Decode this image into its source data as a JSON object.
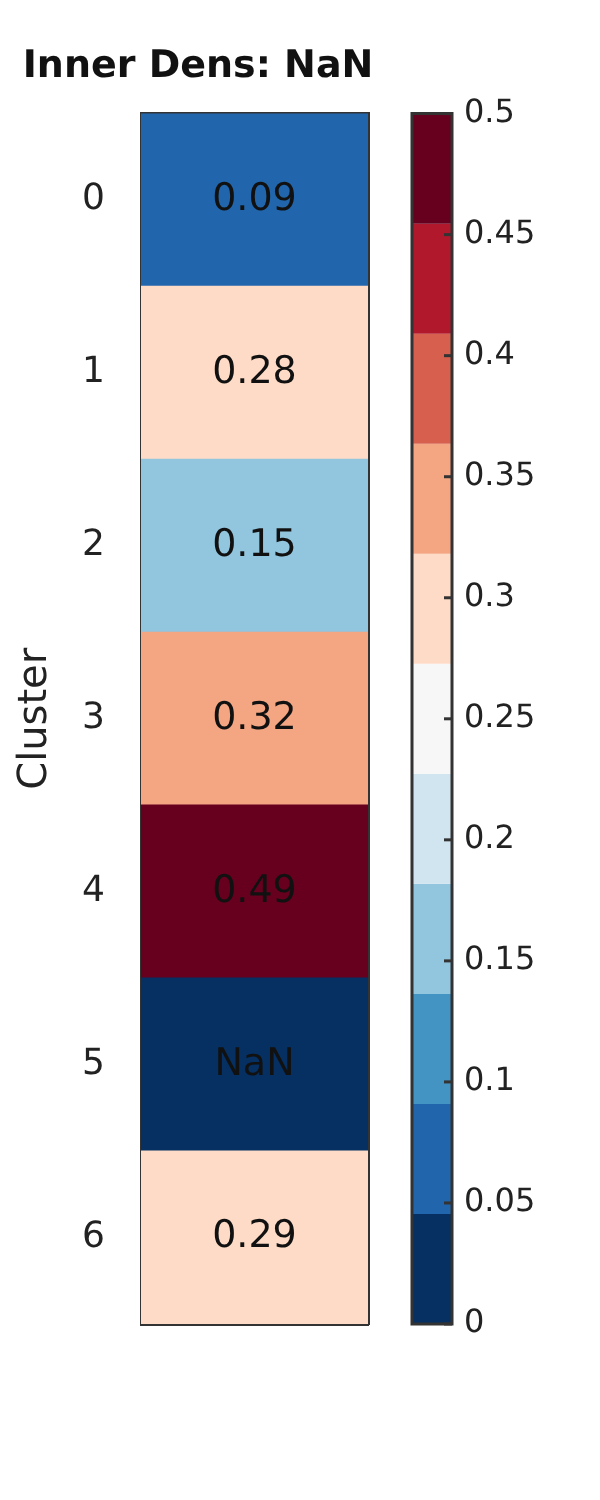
{
  "chart_data": {
    "type": "heatmap",
    "title": "Inner Dens: NaN",
    "ylabel": "Cluster",
    "categories": [
      null
    ],
    "y_categories": [
      "0",
      "1",
      "2",
      "3",
      "4",
      "5",
      "6"
    ],
    "cells": [
      [
        0.09
      ],
      [
        0.28
      ],
      [
        0.15
      ],
      [
        0.32
      ],
      [
        0.49
      ],
      [
        0
      ],
      [
        0.29
      ]
    ],
    "cell_labels": [
      [
        "0.09"
      ],
      [
        "0.28"
      ],
      [
        "0.15"
      ],
      [
        "0.32"
      ],
      [
        "0.49"
      ],
      [
        "NaN"
      ],
      [
        "0.29"
      ]
    ],
    "clim": [
      0,
      0.5
    ],
    "cticks": [
      0,
      0.05,
      0.1,
      0.15,
      0.2,
      0.25,
      0.3,
      0.35,
      0.4,
      0.45,
      0.5
    ]
  }
}
